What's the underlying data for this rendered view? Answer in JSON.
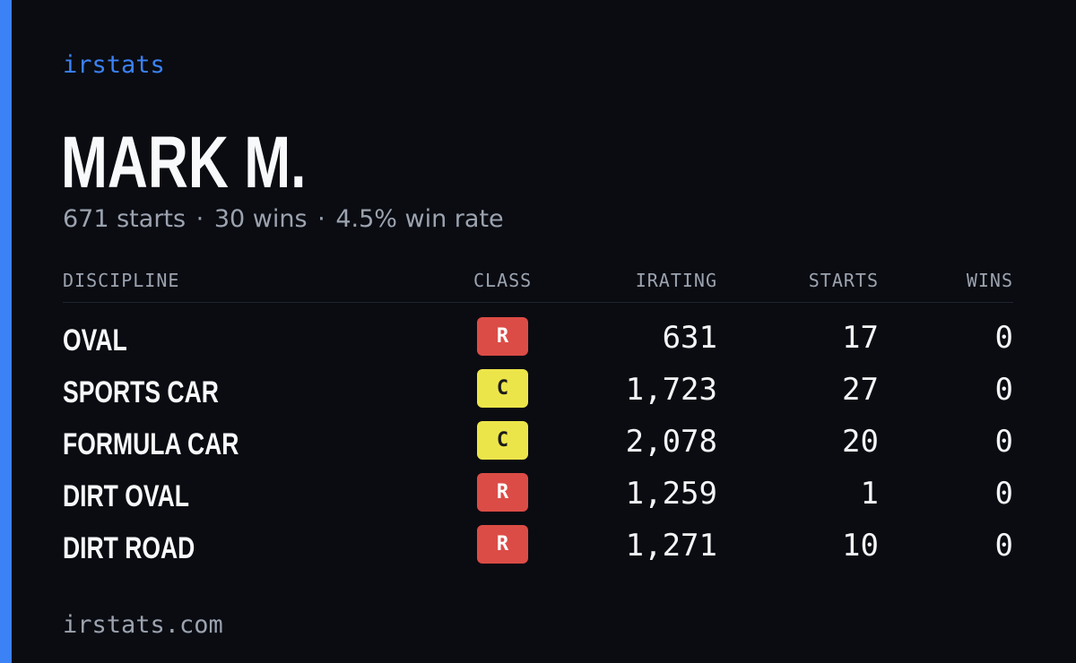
{
  "brand": "irstats",
  "driver": {
    "name": "MARK M.",
    "starts_text": "671 starts",
    "wins_text": "30 wins",
    "win_rate_text": "4.5% win rate",
    "separator": "·"
  },
  "columns": {
    "discipline": "DISCIPLINE",
    "class": "CLASS",
    "irating": "IRATING",
    "starts": "STARTS",
    "wins": "WINS"
  },
  "rows": [
    {
      "discipline": "OVAL",
      "class": "R",
      "irating": "631",
      "starts": "17",
      "wins": "0"
    },
    {
      "discipline": "SPORTS CAR",
      "class": "C",
      "irating": "1,723",
      "starts": "27",
      "wins": "0"
    },
    {
      "discipline": "FORMULA CAR",
      "class": "C",
      "irating": "2,078",
      "starts": "20",
      "wins": "0"
    },
    {
      "discipline": "DIRT OVAL",
      "class": "R",
      "irating": "1,259",
      "starts": "1",
      "wins": "0"
    },
    {
      "discipline": "DIRT ROAD",
      "class": "R",
      "irating": "1,271",
      "starts": "10",
      "wins": "0"
    }
  ],
  "colors": {
    "accent": "#3b82f6",
    "background": "#0a0c12",
    "class_R": "#dc4c46",
    "class_C": "#ece54a",
    "muted_text": "#9ca3af"
  },
  "footer": {
    "url": "irstats.com"
  }
}
